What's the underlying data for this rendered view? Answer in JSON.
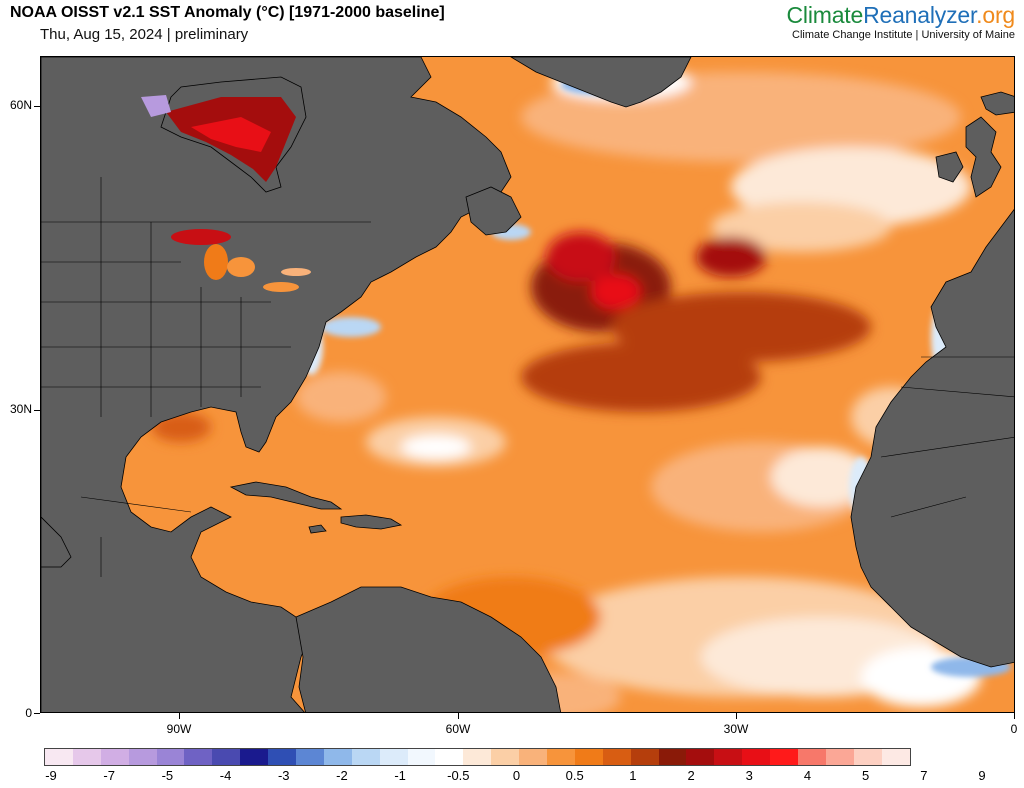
{
  "header": {
    "title": "NOAA OISST v2.1 SST Anomaly (°C) [1971-2000 baseline]",
    "subtitle": "Thu, Aug 15, 2024 | preliminary",
    "brand_part1": "Climate",
    "brand_part2": "Reanalyzer",
    "brand_part3": ".org",
    "brand_sub": "Climate Change Institute | University of Maine"
  },
  "map": {
    "lat_labels": [
      "60N",
      "30N",
      "0"
    ],
    "lon_labels": [
      "90W",
      "60W",
      "30W",
      "0"
    ],
    "ocean_base_color": "#f7943b",
    "land_color": "#5e5e5e",
    "land_border_color": "#000000"
  },
  "colorbar": {
    "labels": [
      "-9",
      "-7",
      "-5",
      "-4",
      "-3",
      "-2",
      "-1",
      "-0.5",
      "0",
      "0.5",
      "1",
      "2",
      "3",
      "4",
      "5",
      "7",
      "9"
    ],
    "colors": [
      "#f8e8f2",
      "#e6c8ea",
      "#d1aee4",
      "#b79ade",
      "#9a84d6",
      "#6f62c4",
      "#4a4ab0",
      "#1a1a8e",
      "#2f4fb4",
      "#5c86d4",
      "#8fb8ea",
      "#bad7f4",
      "#dcebfa",
      "#f2f8fe",
      "#ffffff",
      "#fde9d8",
      "#fbcfa6",
      "#f9b27a",
      "#f7943b",
      "#f07b18",
      "#d85d12",
      "#b53e0c",
      "#8a1a08",
      "#a40d0d",
      "#c80f14",
      "#e80f16",
      "#ff1a1a",
      "#f7786a",
      "#fba796",
      "#fdd0c2",
      "#fde9e4"
    ]
  }
}
